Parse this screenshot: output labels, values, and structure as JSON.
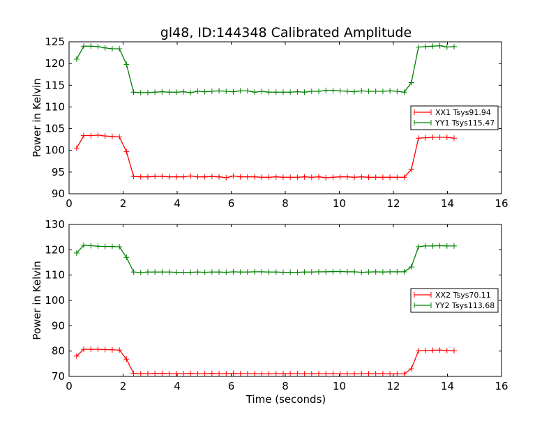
{
  "chart_data": [
    {
      "type": "line",
      "title": "gl48, ID:144348 Calibrated Amplitude",
      "xlabel": "",
      "ylabel": "Power in Kelvin",
      "xlim": [
        0,
        16
      ],
      "ylim": [
        90,
        125
      ],
      "xticks": [
        0,
        2,
        4,
        6,
        8,
        10,
        12,
        14,
        16
      ],
      "yticks": [
        90,
        95,
        100,
        105,
        110,
        115,
        120,
        125
      ],
      "legend_position": "center-right",
      "x_start": 0.28,
      "x_step": 0.2635,
      "series": [
        {
          "name": "XX1 Tsys91.94",
          "color": "#ff0000",
          "values": [
            100.5,
            103.4,
            103.4,
            103.5,
            103.3,
            103.2,
            103.1,
            99.7,
            94.0,
            93.9,
            93.9,
            94.0,
            94.0,
            93.9,
            93.9,
            93.9,
            94.1,
            93.9,
            93.9,
            94.0,
            93.9,
            93.7,
            94.1,
            93.9,
            93.9,
            93.9,
            93.8,
            93.8,
            93.9,
            93.8,
            93.8,
            93.8,
            93.9,
            93.8,
            93.9,
            93.7,
            93.8,
            93.9,
            93.9,
            93.8,
            93.9,
            93.8,
            93.8,
            93.8,
            93.8,
            93.8,
            93.8,
            95.6,
            102.8,
            102.9,
            103.0,
            103.0,
            103.0,
            102.8
          ]
        },
        {
          "name": "YY1 Tsys115.47",
          "color": "#008000",
          "values": [
            121.0,
            124.0,
            124.0,
            123.9,
            123.6,
            123.4,
            123.4,
            119.8,
            113.4,
            113.3,
            113.3,
            113.4,
            113.5,
            113.4,
            113.4,
            113.5,
            113.3,
            113.6,
            113.5,
            113.6,
            113.7,
            113.6,
            113.5,
            113.7,
            113.7,
            113.4,
            113.6,
            113.4,
            113.4,
            113.4,
            113.4,
            113.5,
            113.4,
            113.6,
            113.6,
            113.8,
            113.8,
            113.7,
            113.6,
            113.5,
            113.7,
            113.6,
            113.6,
            113.6,
            113.7,
            113.6,
            113.4,
            115.6,
            123.8,
            123.9,
            124.0,
            124.1,
            123.8,
            123.9
          ]
        }
      ]
    },
    {
      "type": "line",
      "title": "",
      "xlabel": "Time (seconds)",
      "ylabel": "Power in Kelvin",
      "xlim": [
        0,
        16
      ],
      "ylim": [
        70,
        130
      ],
      "xticks": [
        0,
        2,
        4,
        6,
        8,
        10,
        12,
        14,
        16
      ],
      "yticks": [
        70,
        80,
        90,
        100,
        110,
        120,
        130
      ],
      "legend_position": "center-right",
      "x_start": 0.28,
      "x_step": 0.2635,
      "series": [
        {
          "name": "XX2 Tsys70.11",
          "color": "#ff0000",
          "values": [
            78.0,
            80.7,
            80.7,
            80.7,
            80.6,
            80.5,
            80.4,
            76.8,
            71.2,
            71.1,
            71.1,
            71.2,
            71.2,
            71.1,
            71.1,
            71.1,
            71.2,
            71.1,
            71.1,
            71.2,
            71.1,
            71.1,
            71.2,
            71.1,
            71.1,
            71.1,
            71.0,
            71.0,
            71.1,
            71.1,
            71.1,
            71.1,
            71.0,
            71.1,
            71.1,
            71.0,
            71.1,
            71.0,
            71.0,
            71.0,
            71.1,
            71.1,
            71.1,
            71.1,
            71.0,
            71.0,
            71.0,
            73.0,
            80.1,
            80.2,
            80.3,
            80.4,
            80.2,
            80.1
          ]
        },
        {
          "name": "YY2 Tsys113.68",
          "color": "#008000",
          "values": [
            118.7,
            121.8,
            121.6,
            121.4,
            121.3,
            121.3,
            121.2,
            117.0,
            111.2,
            111.0,
            111.2,
            111.2,
            111.2,
            111.2,
            111.1,
            111.1,
            111.1,
            111.2,
            111.1,
            111.2,
            111.2,
            111.1,
            111.3,
            111.2,
            111.2,
            111.3,
            111.3,
            111.2,
            111.2,
            111.1,
            111.1,
            111.1,
            111.2,
            111.2,
            111.3,
            111.3,
            111.4,
            111.4,
            111.3,
            111.3,
            111.1,
            111.2,
            111.3,
            111.2,
            111.3,
            111.3,
            111.3,
            113.2,
            121.2,
            121.5,
            121.5,
            121.6,
            121.5,
            121.5
          ]
        }
      ]
    }
  ]
}
